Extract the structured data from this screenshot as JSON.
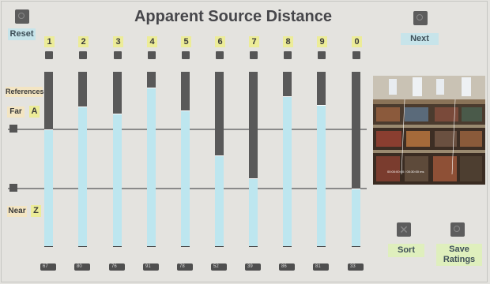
{
  "title": "Apparent Source Distance",
  "buttons": {
    "reset": "Reset",
    "next": "Next",
    "sort": "Sort",
    "save_ratings": "Save Ratings"
  },
  "references": {
    "heading": "References",
    "far_label": "Far",
    "far_key": "A",
    "near_label": "Near",
    "near_key": "Z"
  },
  "sliders": [
    {
      "label": "1",
      "rating": 67
    },
    {
      "label": "2",
      "rating": 80
    },
    {
      "label": "3",
      "rating": 76
    },
    {
      "label": "4",
      "rating": 91
    },
    {
      "label": "5",
      "rating": 78
    },
    {
      "label": "6",
      "rating": 52
    },
    {
      "label": "7",
      "rating": 39
    },
    {
      "label": "8",
      "rating": 86
    },
    {
      "label": "9",
      "rating": 81
    },
    {
      "label": "0",
      "rating": 33
    }
  ],
  "value_readouts": [
    "67",
    "80",
    "76",
    "91",
    "78",
    "52",
    "39",
    "86",
    "81",
    "33"
  ],
  "video_overlay": "00:00:00:00 / 00:30:00 ms",
  "colors": {
    "slider_fill": "#bde6ef",
    "slider_track": "#595959",
    "label_yellow": "#ecec98",
    "button_green": "#dfefbd",
    "button_blue": "#c7e4ea"
  }
}
